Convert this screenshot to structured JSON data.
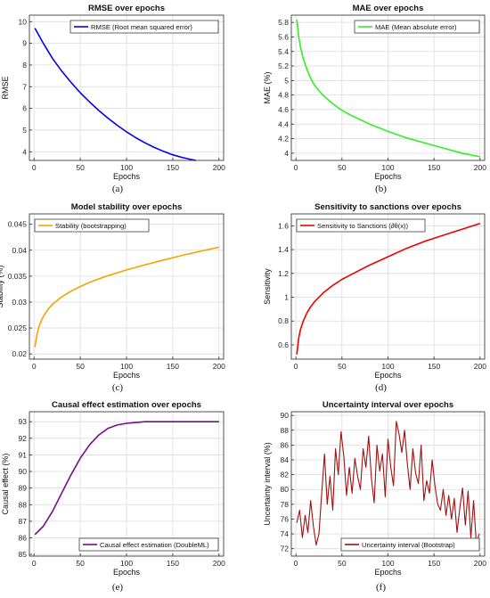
{
  "chart_data": [
    {
      "type": "line",
      "panel_label": "(a)",
      "title": "RMSE over epochs",
      "xlabel": "Epochs",
      "ylabel": "RMSE",
      "xlim": [
        -5,
        205
      ],
      "ylim": [
        3.6,
        10.3
      ],
      "xticks": [
        0,
        50,
        100,
        150,
        200
      ],
      "yticks": [
        4,
        5,
        6,
        7,
        8,
        9,
        10
      ],
      "grid": true,
      "legend_position": "top-right",
      "series": [
        {
          "name": "RMSE (Root mean squared error)",
          "color": "#0000ee",
          "x": [
            1,
            10,
            20,
            30,
            40,
            50,
            60,
            70,
            80,
            90,
            100,
            110,
            120,
            130,
            140,
            150,
            160,
            170,
            175
          ],
          "y": [
            9.7,
            9.0,
            8.3,
            7.72,
            7.2,
            6.72,
            6.3,
            5.9,
            5.55,
            5.22,
            4.92,
            4.65,
            4.41,
            4.2,
            4.02,
            3.86,
            3.74,
            3.64,
            3.6
          ]
        }
      ]
    },
    {
      "type": "line",
      "panel_label": "(b)",
      "title": "MAE over epochs",
      "xlabel": "Epochs",
      "ylabel": "MAE (%)",
      "xlim": [
        -5,
        205
      ],
      "ylim": [
        3.9,
        5.9
      ],
      "xticks": [
        0,
        50,
        100,
        150,
        200
      ],
      "yticks": [
        4,
        4.2,
        4.4,
        4.6,
        4.8,
        5,
        5.2,
        5.4,
        5.6,
        5.8
      ],
      "grid": true,
      "legend_position": "top-right",
      "series": [
        {
          "name": "MAE (Mean absolute error)",
          "color": "#33ee22",
          "x": [
            1,
            3,
            5,
            8,
            12,
            16,
            20,
            25,
            30,
            40,
            50,
            60,
            80,
            100,
            120,
            140,
            160,
            180,
            200
          ],
          "y": [
            5.84,
            5.6,
            5.46,
            5.3,
            5.15,
            5.03,
            4.94,
            4.86,
            4.79,
            4.68,
            4.59,
            4.52,
            4.4,
            4.3,
            4.21,
            4.14,
            4.07,
            4.0,
            3.95
          ]
        }
      ]
    },
    {
      "type": "line",
      "panel_label": "(c)",
      "title": "Model stability over epochs",
      "xlabel": "Epochs",
      "ylabel": "Stability (%)",
      "xlim": [
        -5,
        205
      ],
      "ylim": [
        0.019,
        0.047
      ],
      "xticks": [
        0,
        50,
        100,
        150,
        200
      ],
      "yticks": [
        0.02,
        0.025,
        0.03,
        0.035,
        0.04,
        0.045
      ],
      "grid": true,
      "legend_position": "top-left",
      "series": [
        {
          "name": "Stability (bootstrapping)",
          "color": "#f5a300",
          "x": [
            1,
            3,
            5,
            8,
            12,
            16,
            20,
            25,
            30,
            40,
            50,
            60,
            80,
            100,
            120,
            140,
            160,
            180,
            200
          ],
          "y": [
            0.0213,
            0.0236,
            0.0251,
            0.0265,
            0.0278,
            0.0288,
            0.0296,
            0.0303,
            0.031,
            0.0321,
            0.033,
            0.0338,
            0.0351,
            0.0362,
            0.0372,
            0.0381,
            0.039,
            0.0398,
            0.0406
          ]
        }
      ]
    },
    {
      "type": "line",
      "panel_label": "(d)",
      "title": "Sensitivity to sanctions over epochs",
      "xlabel": "Epochs",
      "ylabel": "Sensitivity",
      "xlim": [
        -5,
        205
      ],
      "ylim": [
        0.48,
        1.7
      ],
      "xticks": [
        0,
        50,
        100,
        150,
        200
      ],
      "yticks": [
        0.6,
        0.8,
        1,
        1.2,
        1.4,
        1.6
      ],
      "grid": true,
      "legend_position": "top-left",
      "series": [
        {
          "name": "Sensitivity to Sanctions (∂θ(x))",
          "color": "#ee0000",
          "x": [
            1,
            3,
            5,
            8,
            12,
            16,
            20,
            25,
            30,
            40,
            50,
            60,
            80,
            100,
            120,
            140,
            160,
            180,
            200
          ],
          "y": [
            0.52,
            0.66,
            0.73,
            0.8,
            0.87,
            0.92,
            0.96,
            1.0,
            1.04,
            1.1,
            1.15,
            1.19,
            1.27,
            1.34,
            1.41,
            1.47,
            1.52,
            1.57,
            1.62
          ]
        }
      ]
    },
    {
      "type": "line",
      "panel_label": "(e)",
      "title": "Causal effect estimation over epochs",
      "xlabel": "Epochs",
      "ylabel": "Causal effect (%)",
      "xlim": [
        -5,
        205
      ],
      "ylim": [
        84.9,
        93.6
      ],
      "xticks": [
        0,
        50,
        100,
        150,
        200
      ],
      "yticks": [
        85,
        86,
        87,
        88,
        89,
        90,
        91,
        92,
        93
      ],
      "grid": true,
      "legend_position": "bottom-right",
      "series": [
        {
          "name": "Causal effect estimation (DoubleML)",
          "color": "#7a0a8a",
          "x": [
            1,
            10,
            20,
            30,
            40,
            50,
            60,
            70,
            80,
            90,
            100,
            110,
            120,
            140,
            160,
            180,
            200
          ],
          "y": [
            86.2,
            86.7,
            87.6,
            88.7,
            89.8,
            90.8,
            91.6,
            92.2,
            92.6,
            92.8,
            92.9,
            92.95,
            93.0,
            93.0,
            93.0,
            93.0,
            93.0
          ]
        }
      ]
    },
    {
      "type": "line",
      "panel_label": "(f)",
      "title": "Uncertainty interval over epochs",
      "xlabel": "Epochs",
      "ylabel": "Uncertainty interval (%)",
      "xlim": [
        -5,
        205
      ],
      "ylim": [
        71,
        90.5
      ],
      "xticks": [
        0,
        50,
        100,
        150,
        200
      ],
      "yticks": [
        72,
        74,
        76,
        78,
        80,
        82,
        84,
        86,
        88,
        90
      ],
      "grid": true,
      "legend_position": "bottom-right",
      "series": [
        {
          "name": "Uncertainty interval (Bootstrap)",
          "color": "#a01010",
          "x": [
            1,
            4,
            7,
            10,
            13,
            16,
            19,
            22,
            25,
            28,
            31,
            34,
            37,
            40,
            43,
            46,
            49,
            52,
            55,
            58,
            61,
            64,
            67,
            70,
            73,
            76,
            79,
            82,
            85,
            88,
            91,
            94,
            97,
            100,
            103,
            106,
            109,
            112,
            115,
            118,
            121,
            124,
            127,
            130,
            133,
            136,
            139,
            142,
            145,
            148,
            151,
            154,
            157,
            160,
            163,
            166,
            169,
            172,
            175,
            178,
            181,
            184,
            187,
            190,
            193,
            196,
            199
          ],
          "y": [
            75.5,
            77.2,
            73.5,
            76.5,
            74.2,
            78.5,
            75.0,
            72.5,
            74.0,
            79.5,
            84.8,
            78.0,
            81.8,
            77.2,
            85.5,
            82.0,
            87.8,
            84.5,
            79.2,
            83.0,
            79.5,
            84.2,
            81.8,
            80.0,
            85.5,
            83.0,
            87.2,
            81.5,
            78.2,
            86.0,
            82.5,
            84.8,
            79.0,
            86.8,
            83.0,
            80.5,
            89.2,
            87.5,
            85.0,
            88.0,
            83.5,
            80.0,
            85.5,
            82.2,
            80.8,
            86.0,
            78.5,
            81.2,
            79.5,
            84.0,
            80.5,
            78.0,
            77.2,
            80.0,
            76.5,
            79.2,
            76.0,
            78.8,
            74.2,
            77.5,
            80.2,
            75.2,
            79.8,
            73.5,
            78.5,
            72.5,
            74.0
          ]
        }
      ]
    }
  ]
}
